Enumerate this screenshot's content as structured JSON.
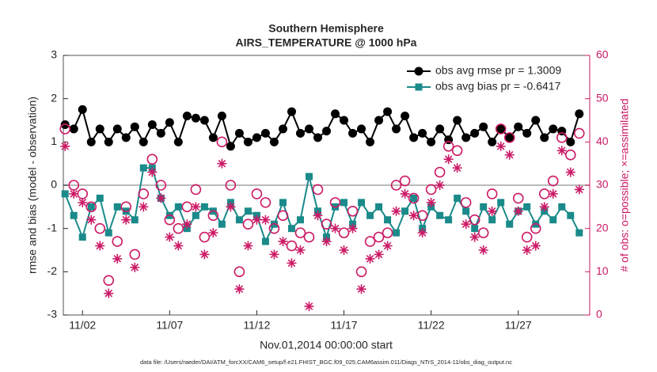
{
  "chart_data": {
    "type": "line",
    "title": "Southern Hemisphere",
    "subtitle": "AIRS_TEMPERATURE @ 1000 hPa",
    "xlabel": "Nov.01,2014 00:00:00 start",
    "ylabel": "rmse and bias (model - observation)",
    "y2label": "# of obs: o=possible; ×=assimilated",
    "footnote": "data file: /Users/raeder/DAI/ATM_forcXX/CAM6_setup/f.e21.FHIST_BGC.f09_025.CAM6assim.011/Diags_NTrS_2014-11/obs_diag_output.nc",
    "legend": "top-right",
    "zero_line": true,
    "xlim": [
      0.9,
      31.1
    ],
    "xticks": [
      {
        "value": 2,
        "label": "11/02"
      },
      {
        "value": 7,
        "label": "11/07"
      },
      {
        "value": 12,
        "label": "11/12"
      },
      {
        "value": 17,
        "label": "11/17"
      },
      {
        "value": 22,
        "label": "11/22"
      },
      {
        "value": 27,
        "label": "11/27"
      }
    ],
    "ylim": [
      -3,
      3
    ],
    "yticks": [
      -3,
      -2,
      -1,
      0,
      1,
      2,
      3
    ],
    "y2lim": [
      0,
      60
    ],
    "y2ticks": [
      0,
      10,
      20,
      30,
      40,
      50,
      60
    ],
    "y2color": "#cc1a66",
    "x": [
      1,
      1.5,
      2,
      2.5,
      3,
      3.5,
      4,
      4.5,
      5,
      5.5,
      6,
      6.5,
      7,
      7.5,
      8,
      8.5,
      9,
      9.5,
      10,
      10.5,
      11,
      11.5,
      12,
      12.5,
      13,
      13.5,
      14,
      14.5,
      15,
      15.5,
      16,
      16.5,
      17,
      17.5,
      18,
      18.5,
      19,
      19.5,
      20,
      20.5,
      21,
      21.5,
      22,
      22.5,
      23,
      23.5,
      24,
      24.5,
      25,
      25.5,
      26,
      26.5,
      27,
      27.5,
      28,
      28.5,
      29,
      29.5,
      30,
      30.5
    ],
    "series": [
      {
        "name": "obs avg rmse pr = 1.3009",
        "color": "#000000",
        "marker": "circle",
        "values": [
          1.4,
          1.3,
          1.75,
          1.0,
          1.3,
          1.0,
          1.3,
          1.1,
          1.35,
          1.0,
          1.4,
          1.2,
          1.45,
          1.0,
          1.6,
          1.55,
          1.5,
          1.1,
          1.6,
          0.9,
          1.2,
          1.0,
          1.1,
          1.2,
          1.0,
          1.3,
          1.7,
          1.2,
          1.3,
          1.1,
          1.25,
          1.65,
          1.5,
          1.2,
          1.3,
          1.0,
          1.5,
          1.7,
          1.3,
          1.6,
          1.1,
          1.2,
          1.0,
          1.3,
          1.05,
          1.5,
          1.1,
          1.2,
          1.35,
          1.0,
          1.3,
          1.1,
          1.35,
          1.2,
          1.5,
          1.1,
          1.3,
          1.25,
          1.0,
          1.65
        ]
      },
      {
        "name": "obs avg bias pr = -0.6417",
        "color": "#1a8a8a",
        "marker": "square",
        "values": [
          -0.2,
          -0.7,
          -1.2,
          -0.5,
          -0.3,
          -1.1,
          -0.5,
          -0.6,
          -0.8,
          0.4,
          0.4,
          -0.3,
          -0.7,
          -0.5,
          -1.0,
          -0.7,
          -0.5,
          -0.6,
          -0.9,
          -0.4,
          -0.8,
          -0.6,
          -0.7,
          -1.3,
          -0.9,
          -0.4,
          -1.0,
          -0.8,
          0.2,
          -0.6,
          -1.2,
          -0.5,
          -0.4,
          -0.9,
          -0.4,
          -0.7,
          -0.5,
          -0.8,
          -1.1,
          -0.6,
          -0.3,
          -1.0,
          -0.5,
          -0.7,
          -0.8,
          -0.3,
          -0.6,
          -1.0,
          -0.5,
          -0.8,
          -0.4,
          -0.9,
          -0.6,
          -0.5,
          -0.9,
          -0.6,
          -0.8,
          -0.5,
          -0.7,
          -1.1
        ]
      },
      {
        "color": "#cc1a66",
        "marker": "open-circle",
        "axis": "y2",
        "values": [
          43,
          30,
          28,
          25,
          20,
          8,
          17,
          25,
          14,
          28,
          36,
          30,
          22,
          20,
          25,
          29,
          18,
          23,
          40,
          30,
          10,
          21,
          28,
          26,
          20,
          23,
          16,
          19,
          18,
          29,
          21,
          26,
          19,
          24,
          10,
          17,
          18,
          19,
          30,
          31,
          27,
          23,
          29,
          33,
          39,
          38,
          26,
          22,
          19,
          28,
          43,
          41,
          27,
          18,
          20,
          28,
          31,
          41,
          37,
          42
        ]
      },
      {
        "color": "#cc1a66",
        "marker": "asterisk",
        "axis": "y2",
        "values": [
          39,
          28,
          26,
          22,
          16,
          5,
          13,
          22,
          11,
          25,
          33,
          27,
          18,
          16,
          21,
          25,
          14,
          19,
          35,
          25,
          6,
          16,
          22,
          22,
          14,
          17,
          12,
          15,
          2,
          23,
          17,
          20,
          15,
          20,
          6,
          13,
          14,
          16,
          24,
          28,
          23,
          19,
          26,
          30,
          36,
          34,
          21,
          18,
          15,
          24,
          39,
          37,
          24,
          15,
          16,
          25,
          28,
          38,
          33,
          29
        ]
      }
    ]
  }
}
